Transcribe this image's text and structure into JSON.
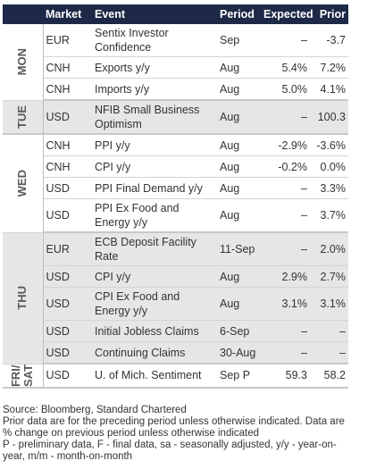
{
  "table": {
    "header": [
      "Market",
      "Event",
      "Period",
      "Expected",
      "Prior"
    ],
    "groups": [
      {
        "day": "MON",
        "rows": [
          [
            "EUR",
            "Sentix Investor Confidence",
            "Sep",
            "–",
            "-3.7"
          ],
          [
            "CNH",
            "Exports y/y",
            "Aug",
            "5.4%",
            "7.2%"
          ],
          [
            "CNH",
            "Imports y/y",
            "Aug",
            "5.0%",
            "4.1%"
          ]
        ]
      },
      {
        "day": "TUE",
        "rows": [
          [
            "USD",
            "NFIB Small Business Optimism",
            "Aug",
            "–",
            "100.3"
          ]
        ]
      },
      {
        "day": "WED",
        "rows": [
          [
            "CNH",
            "PPI y/y",
            "Aug",
            "-2.9%",
            "-3.6%"
          ],
          [
            "CNH",
            "CPI y/y",
            "Aug",
            "-0.2%",
            "0.0%"
          ],
          [
            "USD",
            "PPI Final Demand y/y",
            "Aug",
            "–",
            "3.3%"
          ],
          [
            "USD",
            "PPI Ex Food and Energy y/y",
            "Aug",
            "–",
            "3.7%"
          ]
        ]
      },
      {
        "day": "THU",
        "rows": [
          [
            "EUR",
            "ECB Deposit Facility Rate",
            "11-Sep",
            "–",
            "2.0%"
          ],
          [
            "USD",
            "CPI y/y",
            "Aug",
            "2.9%",
            "2.7%"
          ],
          [
            "USD",
            "CPI Ex Food and Energy y/y",
            "Aug",
            "3.1%",
            "3.1%"
          ],
          [
            "USD",
            "Initial Jobless Claims",
            "6-Sep",
            "–",
            "–"
          ],
          [
            "USD",
            "Continuing Claims",
            "30-Aug",
            "–",
            "–"
          ]
        ]
      },
      {
        "day": "FRI/ SAT",
        "rows": [
          [
            "USD",
            "U. of Mich. Sentiment",
            "Sep P",
            "59.3",
            "58.2"
          ]
        ]
      }
    ]
  },
  "notes": [
    "Source: Bloomberg, Standard Chartered",
    "Prior data are for the preceding period unless otherwise indicated. Data are % change on previous period unless otherwise indicated",
    "P - preliminary data, F - final data, sa - seasonally adjusted, y/y - year-on-year, m/m - month-on-month"
  ]
}
